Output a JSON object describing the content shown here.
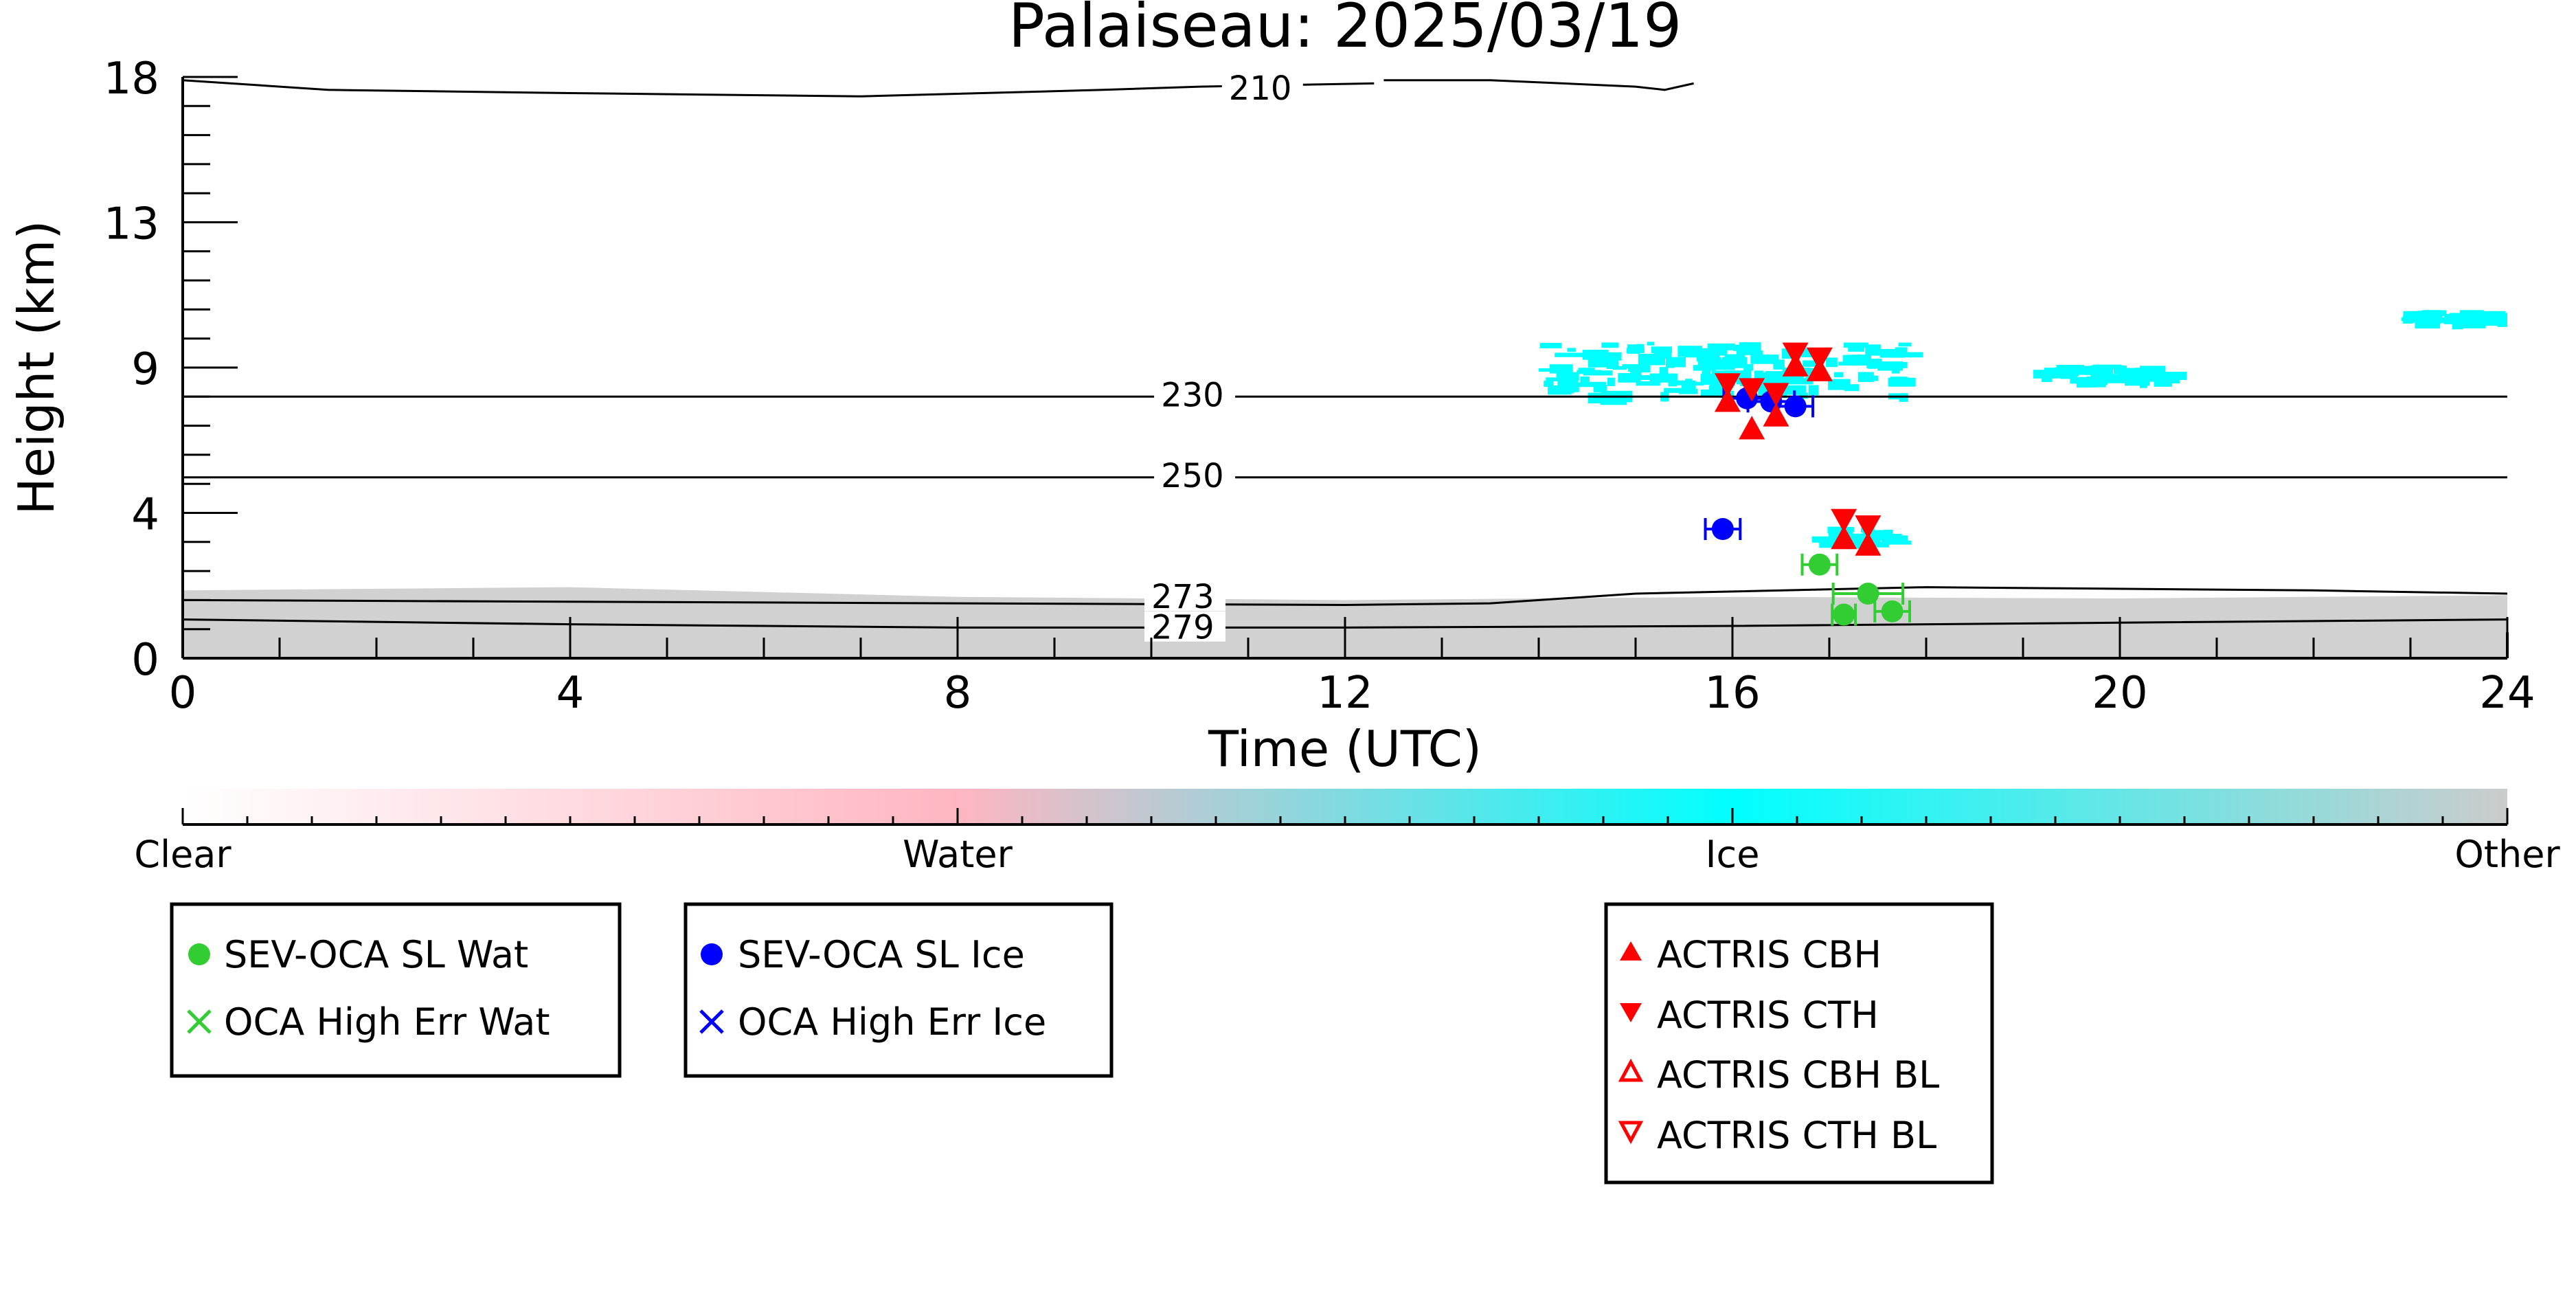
{
  "chart_data": {
    "type": "scatter",
    "title": "Palaiseau: 2025/03/19",
    "xlabel": "Time (UTC)",
    "ylabel": "Height (km)",
    "xlim": [
      0,
      24
    ],
    "ylim": [
      0,
      18
    ],
    "x_ticks": [
      "0",
      "4",
      "8",
      "12",
      "16",
      "20",
      "24"
    ],
    "x_tick_values": [
      0,
      4,
      8,
      12,
      16,
      20,
      24
    ],
    "y_ticks": [
      "0",
      "4",
      "9",
      "13",
      "18"
    ],
    "y_tick_values": [
      0,
      4.5,
      9,
      13.5,
      18
    ],
    "grid": false,
    "colors": {
      "clear": "#ffffff",
      "water": "#ffb6c1",
      "ice": "#00ffff",
      "other": "#cccccc",
      "sev_wat": "#32cd32",
      "sev_ice": "#0000ff",
      "actris": "#ff0000"
    },
    "colorbar": {
      "labels": [
        "Clear",
        "Water",
        "Ice",
        "Other"
      ],
      "positions": [
        0,
        0.333,
        0.667,
        1
      ]
    },
    "temperature_contours": [
      {
        "label": "210",
        "points": [
          [
            0,
            17.9
          ],
          [
            1.5,
            17.6
          ],
          [
            4,
            17.5
          ],
          [
            7,
            17.4
          ],
          [
            9.5,
            17.6
          ],
          [
            10.5,
            17.7
          ],
          [
            12.3,
            17.8
          ]
        ],
        "label_x": 10.8,
        "label_y": 17.6
      },
      {
        "label": "210",
        "points": [
          [
            12.4,
            17.9
          ],
          [
            13.5,
            17.9
          ],
          [
            15,
            17.7
          ],
          [
            15.3,
            17.6
          ],
          [
            15.6,
            17.8
          ]
        ],
        "label_x": -1,
        "label_y": -1
      },
      {
        "label": "230",
        "points": [
          [
            0,
            8.1
          ],
          [
            24,
            8.1
          ]
        ],
        "label_x": 10.1,
        "label_y": 8.1
      },
      {
        "label": "250",
        "points": [
          [
            0,
            5.6
          ],
          [
            24,
            5.6
          ]
        ],
        "label_x": 10.1,
        "label_y": 5.6
      },
      {
        "label": "273",
        "points": [
          [
            0,
            1.8
          ],
          [
            8,
            1.7
          ],
          [
            12,
            1.65
          ],
          [
            13.5,
            1.7
          ],
          [
            15,
            2.0
          ],
          [
            18,
            2.2
          ],
          [
            22,
            2.1
          ],
          [
            24,
            2.0
          ]
        ],
        "label_x": 10.0,
        "label_y": 1.85
      },
      {
        "label": "279",
        "points": [
          [
            0,
            1.2
          ],
          [
            4,
            1.05
          ],
          [
            8,
            0.95
          ],
          [
            12,
            0.95
          ],
          [
            16,
            1.0
          ],
          [
            20,
            1.1
          ],
          [
            24,
            1.2
          ]
        ],
        "label_x": 10.0,
        "label_y": 0.9
      }
    ],
    "ground_layer": {
      "category": "Other",
      "top": [
        [
          0,
          2.1
        ],
        [
          4,
          2.2
        ],
        [
          8,
          1.9
        ],
        [
          12,
          1.8
        ],
        [
          16,
          1.9
        ],
        [
          20,
          1.85
        ],
        [
          24,
          1.95
        ]
      ]
    },
    "ice_clouds": [
      {
        "x0": 14.0,
        "x1": 17.8,
        "y0": 8.2,
        "y1": 9.8
      },
      {
        "x0": 16.8,
        "x1": 17.6,
        "y0": 3.6,
        "y1": 4.1
      },
      {
        "x0": 19.1,
        "x1": 20.4,
        "y0": 8.7,
        "y1": 9.1
      },
      {
        "x0": 22.9,
        "x1": 24.0,
        "y0": 10.5,
        "y1": 10.8
      }
    ],
    "series": [
      {
        "name": "SEV-OCA SL Wat",
        "marker": "circle",
        "color": "#32cd32",
        "points": [
          {
            "x": 16.9,
            "y": 2.9,
            "err": 0.15
          },
          {
            "x": 17.15,
            "y": 1.35,
            "err": 0.1
          },
          {
            "x": 17.4,
            "y": 2.0,
            "err": 0.3
          },
          {
            "x": 17.65,
            "y": 1.45,
            "err": 0.15
          }
        ]
      },
      {
        "name": "OCA High Err Wat",
        "marker": "x",
        "color": "#32cd32",
        "points": []
      },
      {
        "name": "SEV-OCA SL Ice",
        "marker": "circle",
        "color": "#0000ff",
        "points": [
          {
            "x": 15.9,
            "y": 4.0,
            "err": 0.15
          },
          {
            "x": 16.15,
            "y": 8.05,
            "err": 0.2
          },
          {
            "x": 16.4,
            "y": 7.95,
            "err": 0.2
          },
          {
            "x": 16.65,
            "y": 7.8,
            "err": 0.15
          }
        ]
      },
      {
        "name": "OCA High Err Ice",
        "marker": "x",
        "color": "#0000ff",
        "points": []
      },
      {
        "name": "ACTRIS CBH",
        "marker": "triangle-up",
        "color": "#ff0000",
        "points": [
          {
            "x": 15.95,
            "y": 7.95
          },
          {
            "x": 16.2,
            "y": 7.1
          },
          {
            "x": 16.45,
            "y": 7.5
          },
          {
            "x": 17.15,
            "y": 3.7
          },
          {
            "x": 17.4,
            "y": 3.5
          },
          {
            "x": 16.65,
            "y": 9.05
          },
          {
            "x": 16.9,
            "y": 8.9
          }
        ]
      },
      {
        "name": "ACTRIS CTH",
        "marker": "triangle-down",
        "color": "#ff0000",
        "points": [
          {
            "x": 15.95,
            "y": 8.5
          },
          {
            "x": 16.2,
            "y": 8.35
          },
          {
            "x": 16.45,
            "y": 8.2
          },
          {
            "x": 16.65,
            "y": 9.45
          },
          {
            "x": 16.9,
            "y": 9.3
          },
          {
            "x": 17.15,
            "y": 4.3
          },
          {
            "x": 17.4,
            "y": 4.1
          }
        ]
      },
      {
        "name": "ACTRIS CBH BL",
        "marker": "triangle-up-open",
        "color": "#ff0000",
        "points": []
      },
      {
        "name": "ACTRIS CTH BL",
        "marker": "triangle-down-open",
        "color": "#ff0000",
        "points": []
      }
    ],
    "legends": [
      {
        "entries": [
          "SEV-OCA SL Wat",
          "OCA High Err Wat"
        ]
      },
      {
        "entries": [
          "SEV-OCA SL Ice",
          "OCA High Err Ice"
        ]
      },
      {
        "entries": [
          "ACTRIS CBH",
          "ACTRIS CTH",
          "ACTRIS CBH BL",
          "ACTRIS CTH BL"
        ]
      }
    ]
  }
}
